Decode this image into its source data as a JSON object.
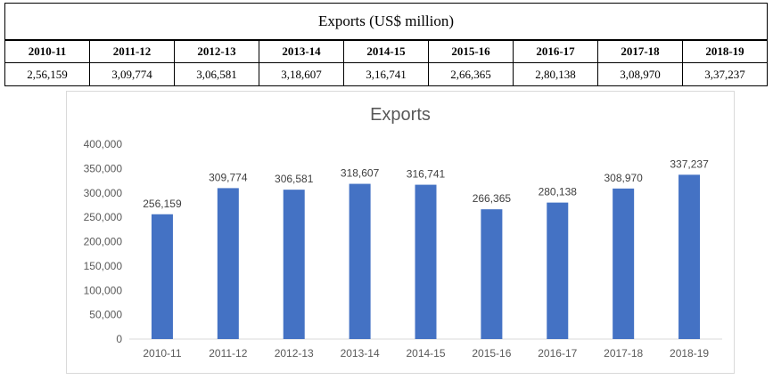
{
  "table": {
    "title": "Exports (US$ million)",
    "years": [
      "2010-11",
      "2011-12",
      "2012-13",
      "2013-14",
      "2014-15",
      "2015-16",
      "2016-17",
      "2017-18",
      "2018-19"
    ],
    "values": [
      "2,56,159",
      "3,09,774",
      "3,06,581",
      "3,18,607",
      "3,16,741",
      "2,66,365",
      "2,80,138",
      "3,08,970",
      "3,37,237"
    ]
  },
  "chart_data": {
    "type": "bar",
    "title": "Exports",
    "categories": [
      "2010-11",
      "2011-12",
      "2012-13",
      "2013-14",
      "2014-15",
      "2015-16",
      "2016-17",
      "2017-18",
      "2018-19"
    ],
    "values": [
      256159,
      309774,
      306581,
      318607,
      316741,
      266365,
      280138,
      308970,
      337237
    ],
    "data_labels": [
      "256,159",
      "309,774",
      "306,581",
      "318,607",
      "316,741",
      "266,365",
      "280,138",
      "308,970",
      "337,237"
    ],
    "ylim": [
      0,
      400000
    ],
    "yticks": [
      0,
      50000,
      100000,
      150000,
      200000,
      250000,
      300000,
      350000,
      400000
    ],
    "ytick_labels": [
      "0",
      "50,000",
      "100,000",
      "150,000",
      "200,000",
      "250,000",
      "300,000",
      "350,000",
      "400,000"
    ],
    "xlabel": "",
    "ylabel": "",
    "grid": false,
    "legend": "none",
    "bar_color": "#4472c4"
  }
}
